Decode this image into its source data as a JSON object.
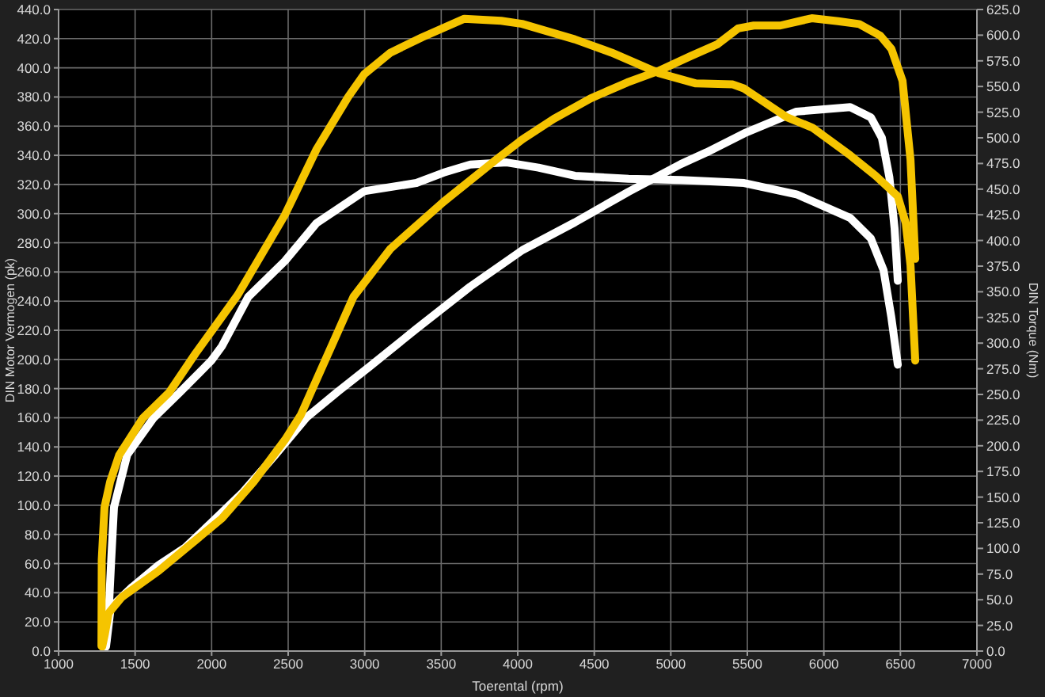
{
  "chart_data": {
    "type": "line",
    "xlabel": "Toerental (rpm)",
    "ylabel": "DIN Motor Vermogen (pk)",
    "y2label": "DIN Torque (Nm)",
    "xlim": [
      1000,
      7000
    ],
    "xticks": [
      1000,
      1500,
      2000,
      2500,
      3000,
      3500,
      4000,
      4500,
      5000,
      5500,
      6000,
      6500,
      7000
    ],
    "ylim": [
      0,
      440
    ],
    "yticks": [
      {
        "value": 0,
        "label": "0.0"
      },
      {
        "value": 20,
        "label": "20.0"
      },
      {
        "value": 40,
        "label": "40.0"
      },
      {
        "value": 60,
        "label": "60.0"
      },
      {
        "value": 80,
        "label": "80.0"
      },
      {
        "value": 100,
        "label": "100.0"
      },
      {
        "value": 120,
        "label": "120.0"
      },
      {
        "value": 140,
        "label": "140.0"
      },
      {
        "value": 160,
        "label": "160.0"
      },
      {
        "value": 180,
        "label": "180.0"
      },
      {
        "value": 200,
        "label": "200.0"
      },
      {
        "value": 220,
        "label": "220.0"
      },
      {
        "value": 240,
        "label": "240.0"
      },
      {
        "value": 260,
        "label": "260.0"
      },
      {
        "value": 280,
        "label": "280.0"
      },
      {
        "value": 300,
        "label": "300.0"
      },
      {
        "value": 320,
        "label": "320.0"
      },
      {
        "value": 340,
        "label": "340.0"
      },
      {
        "value": 360,
        "label": "360.0"
      },
      {
        "value": 380,
        "label": "380.0"
      },
      {
        "value": 400,
        "label": "400.0"
      },
      {
        "value": 420,
        "label": "420.0"
      },
      {
        "value": 440,
        "label": "440.0"
      }
    ],
    "y2lim": [
      0,
      625
    ],
    "y2ticks": [
      {
        "value": 0,
        "label": "0.0"
      },
      {
        "value": 25,
        "label": "25.0"
      },
      {
        "value": 50,
        "label": "50.0"
      },
      {
        "value": 75,
        "label": "75.0"
      },
      {
        "value": 100,
        "label": "100.0"
      },
      {
        "value": 125,
        "label": "125.0"
      },
      {
        "value": 150,
        "label": "150.0"
      },
      {
        "value": 175,
        "label": "175.0"
      },
      {
        "value": 200,
        "label": "200.0"
      },
      {
        "value": 225,
        "label": "225.0"
      },
      {
        "value": 250,
        "label": "250.0"
      },
      {
        "value": 275,
        "label": "275.0"
      },
      {
        "value": 300,
        "label": "300.0"
      },
      {
        "value": 325,
        "label": "325.0"
      },
      {
        "value": 350,
        "label": "350.0"
      },
      {
        "value": 375,
        "label": "375.0"
      },
      {
        "value": 400,
        "label": "400.0"
      },
      {
        "value": 425,
        "label": "425.0"
      },
      {
        "value": 450,
        "label": "450.0"
      },
      {
        "value": 475,
        "label": "475.0"
      },
      {
        "value": 500,
        "label": "500.0"
      },
      {
        "value": 525,
        "label": "525.0"
      },
      {
        "value": 550,
        "label": "550.0"
      },
      {
        "value": 575,
        "label": "575.0"
      },
      {
        "value": 600,
        "label": "600.0"
      },
      {
        "value": 625,
        "label": "625.0"
      }
    ],
    "grid": true,
    "series": [
      {
        "color": "#ffffff",
        "x": [
          1310,
          1341,
          1482,
          1654,
          1826,
          1998,
          2205,
          2412,
          2618,
          2825,
          3031,
          3338,
          3690,
          4031,
          4373,
          4724,
          5066,
          5233,
          5479,
          5821,
          6172,
          6307,
          6379,
          6428,
          6462,
          6483
        ],
        "values": [
          3,
          30,
          44,
          59,
          71,
          88,
          109,
          134,
          160,
          178,
          195,
          221,
          250,
          275,
          294,
          315,
          334,
          342,
          355,
          370,
          373,
          366,
          352,
          325,
          290,
          254
        ]
      },
      {
        "color": "#ffffff",
        "axis": "y2",
        "x": [
          1310,
          1327,
          1344,
          1362,
          1448,
          1620,
          1792,
          1998,
          2067,
          2239,
          2479,
          2686,
          2997,
          3338,
          3514,
          3690,
          3928,
          4135,
          4373,
          4724,
          5066,
          5479,
          5821,
          6172,
          6307,
          6390,
          6441,
          6483
        ],
        "values": [
          7,
          37,
          89,
          140,
          191,
          227,
          252,
          283,
          297,
          345,
          380,
          417,
          448,
          456,
          466,
          474,
          476,
          471,
          463,
          460,
          459,
          456,
          445,
          422,
          402,
          371,
          325,
          279
        ]
      },
      {
        "color": "#f5c400",
        "x": [
          1285,
          1303,
          1327,
          1413,
          1654,
          1826,
          2067,
          2274,
          2480,
          2583,
          2927,
          3169,
          3514,
          3858,
          4031,
          4235,
          4475,
          4716,
          4923,
          5129,
          5302,
          5439,
          5542,
          5715,
          5921,
          6093,
          6231,
          6369,
          6441,
          6514,
          6566,
          6597
        ],
        "values": [
          3,
          12,
          26,
          37,
          55,
          70,
          91,
          116,
          145,
          162,
          243,
          276,
          308,
          337,
          351,
          365,
          379,
          390,
          398,
          408,
          416,
          427,
          429,
          429,
          434,
          432,
          430,
          422,
          413,
          391,
          337,
          269
        ]
      },
      {
        "color": "#f5c400",
        "axis": "y2",
        "x": [
          1280,
          1282,
          1300,
          1337,
          1396,
          1551,
          1723,
          1895,
          2171,
          2479,
          2686,
          2893,
          2997,
          3169,
          3376,
          3651,
          3892,
          4028,
          4372,
          4613,
          4923,
          5164,
          5405,
          5479,
          5759,
          5924,
          6172,
          6338,
          6483,
          6535,
          6566,
          6597
        ],
        "values": [
          5,
          89,
          140,
          165,
          191,
          227,
          252,
          290,
          347,
          425,
          489,
          540,
          562,
          583,
          598,
          616,
          614,
          611,
          596,
          583,
          563,
          553,
          552,
          548,
          520,
          510,
          483,
          463,
          443,
          417,
          376,
          283
        ]
      }
    ]
  }
}
